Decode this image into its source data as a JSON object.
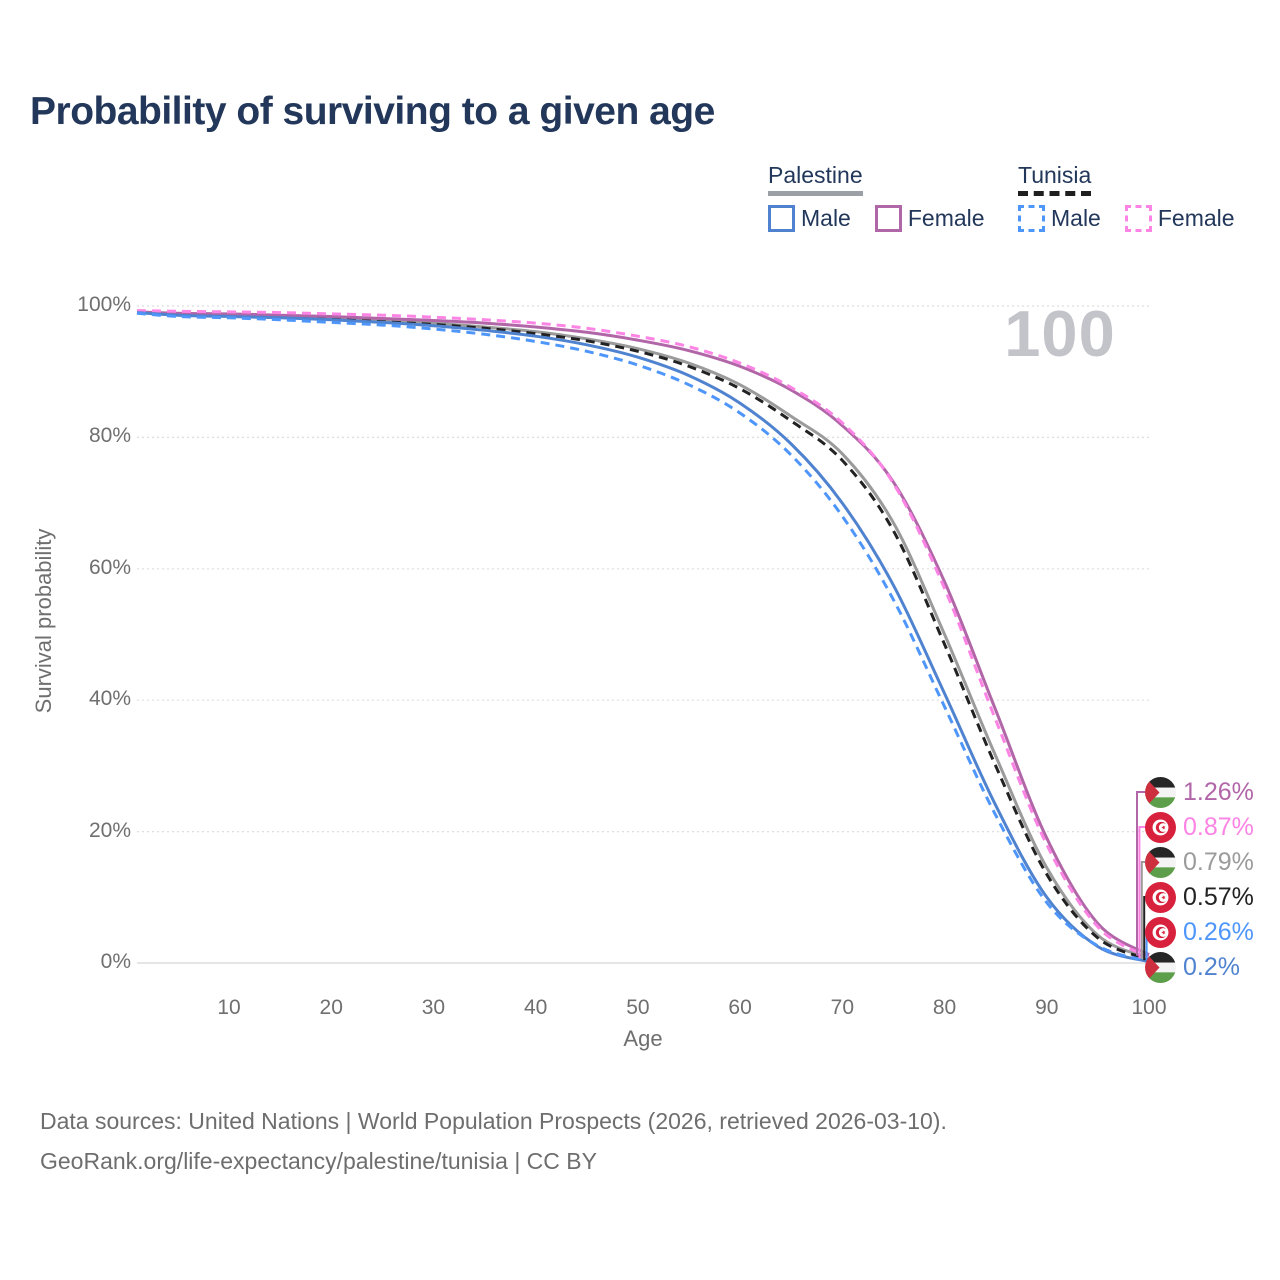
{
  "title": "Probability of surviving to a given age",
  "watermark": "100",
  "legend": {
    "groups": [
      {
        "country": "Palestine",
        "line_style": "solid",
        "underline_color": "#9aa0a6",
        "items": [
          {
            "label": "Male",
            "color": "#5083cf"
          },
          {
            "label": "Female",
            "color": "#b166a8"
          }
        ]
      },
      {
        "country": "Tunisia",
        "line_style": "dashed",
        "underline_color": "#1f1f1f",
        "items": [
          {
            "label": "Male",
            "color": "#4f96fb"
          },
          {
            "label": "Female",
            "color": "#fc84e4"
          }
        ]
      }
    ]
  },
  "chart_data": {
    "type": "line",
    "title": "Probability of surviving to a given age",
    "xlabel": "Age",
    "ylabel": "Survival probability",
    "xlim": [
      1,
      100
    ],
    "ylim": [
      0,
      100
    ],
    "grid": "horizontal-dotted",
    "legend_position": "top-right",
    "x_ticks": [
      10,
      20,
      30,
      40,
      50,
      60,
      70,
      80,
      90,
      100
    ],
    "y_ticks": [
      {
        "label": "100%",
        "value": 100
      },
      {
        "label": "80%",
        "value": 80
      },
      {
        "label": "60%",
        "value": 60
      },
      {
        "label": "40%",
        "value": 40
      },
      {
        "label": "20%",
        "value": 20
      },
      {
        "label": "0%",
        "value": 0
      }
    ],
    "x": [
      1,
      5,
      10,
      15,
      20,
      25,
      30,
      35,
      40,
      45,
      50,
      55,
      60,
      65,
      70,
      75,
      80,
      85,
      90,
      95,
      100
    ],
    "series": [
      {
        "name": "Palestine Both sexes",
        "country": "Palestine",
        "sex": "Both",
        "color": "#9b9b9b",
        "dash": false,
        "values": [
          99.1,
          98.8,
          98.6,
          98.4,
          98.1,
          97.8,
          97.4,
          96.8,
          96.1,
          95.0,
          93.5,
          91.3,
          88.0,
          83.2,
          77.5,
          67.0,
          50.0,
          31.5,
          14.5,
          4.2,
          0.79
        ]
      },
      {
        "name": "Tunisia Both sexes",
        "country": "Tunisia",
        "sex": "Both",
        "color": "#222222",
        "dash": true,
        "values": [
          99.0,
          98.7,
          98.5,
          98.3,
          98.0,
          97.6,
          97.2,
          96.6,
          95.8,
          94.7,
          93.1,
          90.8,
          87.4,
          82.5,
          76.5,
          65.8,
          48.5,
          30.0,
          13.5,
          3.8,
          0.57
        ]
      },
      {
        "name": "Palestine Female",
        "country": "Palestine",
        "sex": "Female",
        "color": "#b166a8",
        "dash": false,
        "values": [
          99.1,
          98.9,
          98.8,
          98.6,
          98.4,
          98.1,
          97.8,
          97.4,
          96.8,
          96.0,
          94.8,
          93.2,
          90.8,
          87.2,
          81.8,
          73.2,
          58.0,
          38.5,
          19.0,
          6.0,
          1.26
        ]
      },
      {
        "name": "Tunisia Female",
        "country": "Tunisia",
        "sex": "Female",
        "color": "#fc84e4",
        "dash": true,
        "values": [
          99.3,
          99.2,
          99.1,
          99.0,
          98.8,
          98.6,
          98.3,
          97.9,
          97.4,
          96.6,
          95.4,
          93.8,
          91.3,
          87.6,
          82.2,
          73.0,
          57.0,
          37.0,
          18.0,
          5.5,
          0.87
        ]
      },
      {
        "name": "Palestine Male",
        "country": "Palestine",
        "sex": "Male",
        "color": "#5083cf",
        "dash": false,
        "values": [
          99.0,
          98.6,
          98.4,
          98.2,
          97.9,
          97.5,
          97.0,
          96.3,
          95.4,
          94.1,
          92.2,
          89.4,
          85.2,
          79.0,
          70.0,
          57.5,
          41.0,
          24.0,
          10.0,
          2.5,
          0.2
        ]
      },
      {
        "name": "Tunisia Male",
        "country": "Tunisia",
        "sex": "Male",
        "color": "#4f96fb",
        "dash": true,
        "values": [
          98.9,
          98.4,
          98.2,
          97.9,
          97.5,
          97.1,
          96.5,
          95.7,
          94.6,
          93.1,
          91.0,
          88.0,
          83.7,
          77.3,
          68.0,
          55.3,
          39.0,
          22.5,
          9.2,
          2.6,
          0.26
        ]
      }
    ],
    "end_labels": [
      {
        "value": "1.26%",
        "series": "Palestine Female",
        "flag": "palestine",
        "color": "#b166a8"
      },
      {
        "value": "0.87%",
        "series": "Tunisia Female",
        "flag": "tunisia",
        "color": "#fc84e4"
      },
      {
        "value": "0.79%",
        "series": "Palestine Both sexes",
        "flag": "palestine",
        "color": "#9b9b9b"
      },
      {
        "value": "0.57%",
        "series": "Tunisia Both sexes",
        "flag": "tunisia",
        "color": "#222222"
      },
      {
        "value": "0.26%",
        "series": "Tunisia Male",
        "flag": "tunisia",
        "color": "#4f96fb"
      },
      {
        "value": "0.2%",
        "series": "Palestine Male",
        "flag": "palestine",
        "color": "#5083cf"
      }
    ]
  },
  "footer": {
    "line1": "Data sources: United Nations | World Population Prospects (2026, retrieved 2026-03-10).",
    "line2": "GeoRank.org/life-expectancy/palestine/tunisia | CC BY"
  }
}
